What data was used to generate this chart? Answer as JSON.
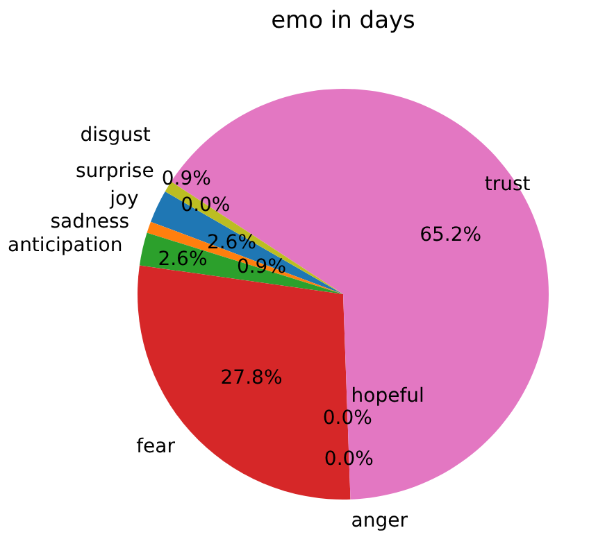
{
  "chart_data": {
    "type": "pie",
    "title": "emo in days",
    "categories": [
      "joy",
      "sadness",
      "anticipation",
      "fear",
      "anger",
      "hopeful",
      "trust",
      "surprise",
      "disgust"
    ],
    "values": [
      2.6,
      0.9,
      2.6,
      27.8,
      0.0,
      0.0,
      65.2,
      0.0,
      0.9
    ],
    "value_labels": [
      "2.6%",
      "0.9%",
      "2.6%",
      "27.8%",
      "0.0%",
      "0.0%",
      "65.2%",
      "0.0%",
      "0.9%"
    ],
    "colors": [
      "#1f77b4",
      "#ff7f0e",
      "#2ca02c",
      "#d62728",
      "#9467bd",
      "#8c564b",
      "#e377c2",
      "#7f7f7f",
      "#bcbd22"
    ]
  }
}
